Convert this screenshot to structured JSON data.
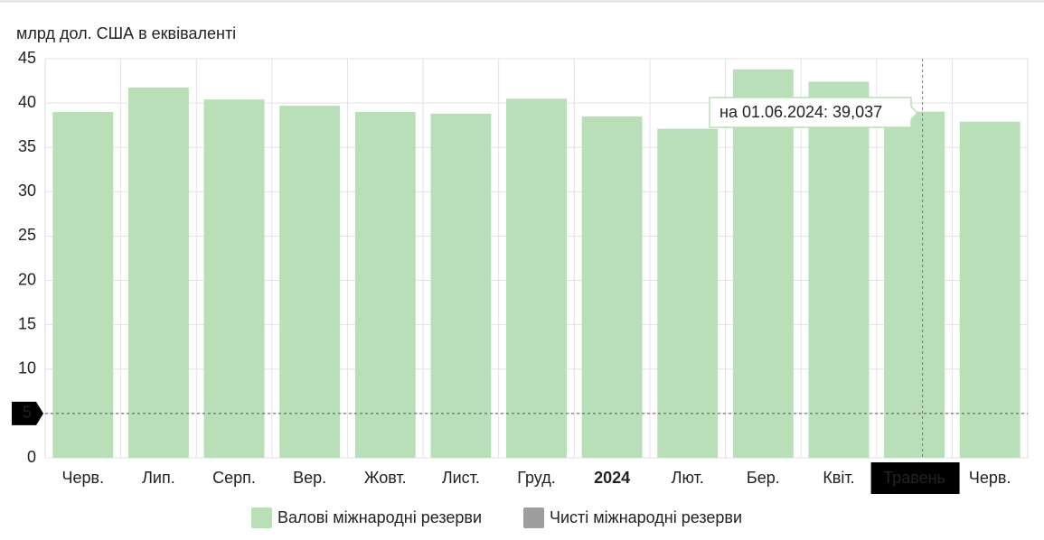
{
  "chart_data": {
    "type": "bar",
    "y_label": "млрд дол. США в еквіваленті",
    "categories": [
      "Черв.",
      "Лип.",
      "Серп.",
      "Вер.",
      "Жовт.",
      "Лист.",
      "Груд.",
      "2024",
      "Лют.",
      "Бер.",
      "Квіт.",
      "Травень",
      "Черв."
    ],
    "series": [
      {
        "name": "Валові міжнародні резерви",
        "color": "#b8dfb8",
        "visible": true,
        "values": [
          39.0,
          41.75,
          40.4,
          39.7,
          39.0,
          38.8,
          40.5,
          38.5,
          37.1,
          43.8,
          42.4,
          39.037,
          37.9
        ]
      },
      {
        "name": "Чисті міжнародні резерви",
        "color": "#9e9e9e",
        "visible": false,
        "values": [
          null,
          null,
          null,
          null,
          null,
          null,
          null,
          null,
          null,
          null,
          null,
          null,
          null
        ]
      }
    ],
    "ylim": [
      0,
      45
    ],
    "yticks": [
      0,
      5,
      10,
      15,
      20,
      25,
      30,
      35,
      40,
      45
    ],
    "grid": true,
    "tooltip": "на 01.06.2024: 39,037",
    "highlighted_category": "Травень",
    "crosshair_y": 5
  }
}
